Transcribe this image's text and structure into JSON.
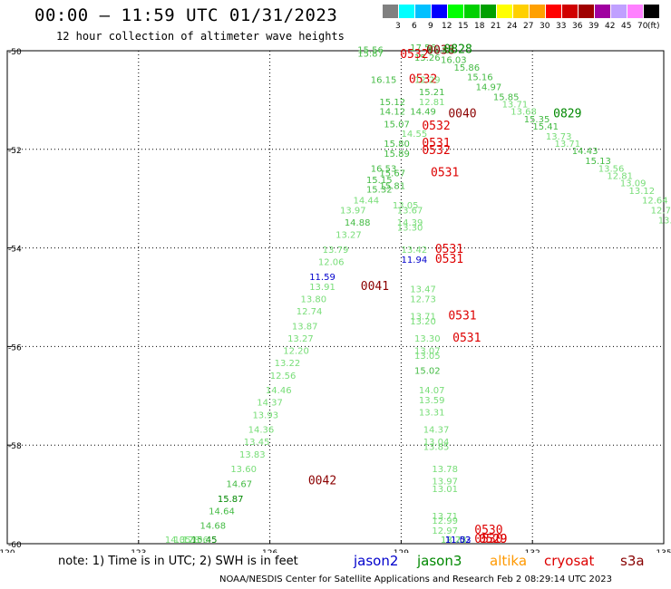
{
  "title": "00:00 – 11:59 UTC 01/31/2023",
  "subtitle": "12 hour collection of altimeter wave heights",
  "legend": {
    "unit": "(ft)",
    "colors": [
      "#808080",
      "#00ffff",
      "#00c0ff",
      "#0000ff",
      "#00ff00",
      "#00d000",
      "#00a000",
      "#ffff00",
      "#ffd000",
      "#ffa000",
      "#ff0000",
      "#d00000",
      "#a00000",
      "#a000a0",
      "#c0a0ff",
      "#ff80ff",
      "#000000"
    ],
    "labels": [
      "3",
      "6",
      "9",
      "12",
      "15",
      "18",
      "21",
      "24",
      "27",
      "30",
      "33",
      "36",
      "39",
      "42",
      "45",
      "70"
    ]
  },
  "note": "note: 1) Time is in UTC; 2) SWH is in feet",
  "satellites": [
    {
      "name": "jason2",
      "color": "#0000cc"
    },
    {
      "name": "jason3",
      "color": "#008800"
    },
    {
      "name": "altika",
      "color": "#ff9900"
    },
    {
      "name": "cryosat",
      "color": "#dd0000"
    },
    {
      "name": "s3a",
      "color": "#880000"
    }
  ],
  "footer": "NOAA/NESDIS Center for Satellite Applications and Research   Feb  2 08:29:14 UTC 2023",
  "chart_data": {
    "type": "scatter",
    "xlim": [
      120,
      135
    ],
    "ylim": [
      -60,
      -50
    ],
    "x_ticks": [
      "120",
      "123",
      "126",
      "129",
      "132",
      "135"
    ],
    "y_ticks": [
      "-50",
      "-52",
      "-54",
      "-56",
      "-58",
      "-60"
    ],
    "grid": true,
    "text_points": [
      {
        "x": 128.3,
        "y": -50.05,
        "text": "15.56",
        "color": "#44bb44"
      },
      {
        "x": 128.3,
        "y": -50.12,
        "text": "15.87",
        "color": "#44bb44"
      },
      {
        "x": 129.5,
        "y": -50.0,
        "text": "17.56",
        "color": "#44bb44"
      },
      {
        "x": 129.9,
        "y": -50.05,
        "text": "15.89",
        "color": "#44bb44"
      },
      {
        "x": 129.6,
        "y": -50.2,
        "text": "15.26",
        "color": "#44bb44"
      },
      {
        "x": 129.9,
        "y": -50.06,
        "text": "0038",
        "color": "#8b0000"
      },
      {
        "x": 130.3,
        "y": -50.05,
        "text": "0828",
        "color": "#008800"
      },
      {
        "x": 130.2,
        "y": -50.25,
        "text": "16.03",
        "color": "#44bb44"
      },
      {
        "x": 130.5,
        "y": -50.4,
        "text": "15.86",
        "color": "#44bb44"
      },
      {
        "x": 130.8,
        "y": -50.6,
        "text": "15.16",
        "color": "#44bb44"
      },
      {
        "x": 131.0,
        "y": -50.8,
        "text": "14.97",
        "color": "#44bb44"
      },
      {
        "x": 131.4,
        "y": -51.0,
        "text": "15.85",
        "color": "#44bb44"
      },
      {
        "x": 131.6,
        "y": -51.15,
        "text": "13.71",
        "color": "#77dd77"
      },
      {
        "x": 131.8,
        "y": -51.3,
        "text": "13.68",
        "color": "#77dd77"
      },
      {
        "x": 132.1,
        "y": -51.45,
        "text": "15.35",
        "color": "#44bb44"
      },
      {
        "x": 132.3,
        "y": -51.6,
        "text": "15.41",
        "color": "#44bb44"
      },
      {
        "x": 132.8,
        "y": -51.35,
        "text": "0829",
        "color": "#008800"
      },
      {
        "x": 132.6,
        "y": -51.8,
        "text": "13.73",
        "color": "#77dd77"
      },
      {
        "x": 132.8,
        "y": -51.95,
        "text": "13.71",
        "color": "#77dd77"
      },
      {
        "x": 133.2,
        "y": -52.1,
        "text": "14.43",
        "color": "#44bb44"
      },
      {
        "x": 133.5,
        "y": -52.3,
        "text": "15.13",
        "color": "#44bb44"
      },
      {
        "x": 133.8,
        "y": -52.45,
        "text": "13.56",
        "color": "#77dd77"
      },
      {
        "x": 134.0,
        "y": -52.6,
        "text": "12.81",
        "color": "#77dd77"
      },
      {
        "x": 134.3,
        "y": -52.75,
        "text": "13.09",
        "color": "#77dd77"
      },
      {
        "x": 134.5,
        "y": -52.9,
        "text": "13.12",
        "color": "#77dd77"
      },
      {
        "x": 134.8,
        "y": -53.1,
        "text": "12.64",
        "color": "#77dd77"
      },
      {
        "x": 135.0,
        "y": -53.3,
        "text": "12.75",
        "color": "#77dd77"
      },
      {
        "x": 135.1,
        "y": -53.5,
        "text": "13.2",
        "color": "#77dd77"
      },
      {
        "x": 129.3,
        "y": -50.15,
        "text": "0532",
        "color": "#dd0000"
      },
      {
        "x": 129.5,
        "y": -50.65,
        "text": "0532",
        "color": "#dd0000"
      },
      {
        "x": 128.6,
        "y": -50.65,
        "text": "16.15",
        "color": "#44bb44"
      },
      {
        "x": 129.6,
        "y": -50.65,
        "text": "12.29",
        "color": "#77dd77"
      },
      {
        "x": 129.7,
        "y": -50.9,
        "text": "15.21",
        "color": "#44bb44"
      },
      {
        "x": 128.8,
        "y": -51.1,
        "text": "15.12",
        "color": "#44bb44"
      },
      {
        "x": 129.7,
        "y": -51.1,
        "text": "12.81",
        "color": "#77dd77"
      },
      {
        "x": 128.8,
        "y": -51.3,
        "text": "14.12",
        "color": "#44bb44"
      },
      {
        "x": 129.5,
        "y": -51.3,
        "text": "14.49",
        "color": "#44bb44"
      },
      {
        "x": 130.4,
        "y": -51.35,
        "text": "0040",
        "color": "#8b0000"
      },
      {
        "x": 128.9,
        "y": -51.55,
        "text": "15.07",
        "color": "#44bb44"
      },
      {
        "x": 129.8,
        "y": -51.6,
        "text": "0532",
        "color": "#dd0000"
      },
      {
        "x": 129.3,
        "y": -51.75,
        "text": "14.55",
        "color": "#77dd77"
      },
      {
        "x": 128.9,
        "y": -51.95,
        "text": "15.80",
        "color": "#44bb44"
      },
      {
        "x": 129.8,
        "y": -51.95,
        "text": "0531",
        "color": "#dd0000"
      },
      {
        "x": 129.8,
        "y": -52.1,
        "text": "0532",
        "color": "#dd0000"
      },
      {
        "x": 128.9,
        "y": -52.15,
        "text": "15.89",
        "color": "#44bb44"
      },
      {
        "x": 128.6,
        "y": -52.45,
        "text": "16.53",
        "color": "#44bb44"
      },
      {
        "x": 128.8,
        "y": -52.55,
        "text": "15.67",
        "color": "#44bb44"
      },
      {
        "x": 130.0,
        "y": -52.55,
        "text": "0531",
        "color": "#dd0000"
      },
      {
        "x": 128.5,
        "y": -52.68,
        "text": "15.15",
        "color": "#44bb44"
      },
      {
        "x": 128.8,
        "y": -52.8,
        "text": "15.81",
        "color": "#44bb44"
      },
      {
        "x": 128.5,
        "y": -52.88,
        "text": "15.32",
        "color": "#44bb44"
      },
      {
        "x": 128.2,
        "y": -53.1,
        "text": "14.44",
        "color": "#77dd77"
      },
      {
        "x": 129.1,
        "y": -53.2,
        "text": "13.05",
        "color": "#77dd77"
      },
      {
        "x": 127.9,
        "y": -53.3,
        "text": "13.97",
        "color": "#77dd77"
      },
      {
        "x": 129.2,
        "y": -53.3,
        "text": "13.67",
        "color": "#77dd77"
      },
      {
        "x": 128.0,
        "y": -53.55,
        "text": "14.88",
        "color": "#44bb44"
      },
      {
        "x": 129.2,
        "y": -53.55,
        "text": "14.39",
        "color": "#77dd77"
      },
      {
        "x": 129.2,
        "y": -53.65,
        "text": "13.30",
        "color": "#77dd77"
      },
      {
        "x": 127.8,
        "y": -53.8,
        "text": "13.27",
        "color": "#77dd77"
      },
      {
        "x": 127.5,
        "y": -54.1,
        "text": "13.79",
        "color": "#77dd77"
      },
      {
        "x": 129.3,
        "y": -54.1,
        "text": "13.42",
        "color": "#77dd77"
      },
      {
        "x": 130.1,
        "y": -54.1,
        "text": "0531",
        "color": "#dd0000"
      },
      {
        "x": 129.3,
        "y": -54.3,
        "text": "11.94",
        "color": "#0000cc"
      },
      {
        "x": 130.1,
        "y": -54.3,
        "text": "0531",
        "color": "#dd0000"
      },
      {
        "x": 127.4,
        "y": -54.35,
        "text": "12.06",
        "color": "#77dd77"
      },
      {
        "x": 127.2,
        "y": -54.65,
        "text": "11.59",
        "color": "#0000cc"
      },
      {
        "x": 127.2,
        "y": -54.85,
        "text": "13.91",
        "color": "#77dd77"
      },
      {
        "x": 128.4,
        "y": -54.85,
        "text": "0041",
        "color": "#8b0000"
      },
      {
        "x": 129.5,
        "y": -54.9,
        "text": "13.47",
        "color": "#77dd77"
      },
      {
        "x": 127.0,
        "y": -55.1,
        "text": "13.80",
        "color": "#77dd77"
      },
      {
        "x": 129.5,
        "y": -55.1,
        "text": "12.73",
        "color": "#77dd77"
      },
      {
        "x": 126.9,
        "y": -55.35,
        "text": "12.74",
        "color": "#77dd77"
      },
      {
        "x": 129.5,
        "y": -55.45,
        "text": "13.71",
        "color": "#77dd77"
      },
      {
        "x": 130.4,
        "y": -55.45,
        "text": "0531",
        "color": "#dd0000"
      },
      {
        "x": 126.8,
        "y": -55.65,
        "text": "13.87",
        "color": "#77dd77"
      },
      {
        "x": 129.5,
        "y": -55.55,
        "text": "13.20",
        "color": "#77dd77"
      },
      {
        "x": 126.7,
        "y": -55.9,
        "text": "13.27",
        "color": "#77dd77"
      },
      {
        "x": 129.6,
        "y": -55.9,
        "text": "13.30",
        "color": "#77dd77"
      },
      {
        "x": 130.5,
        "y": -55.9,
        "text": "0531",
        "color": "#dd0000"
      },
      {
        "x": 126.6,
        "y": -56.15,
        "text": "12.20",
        "color": "#77dd77"
      },
      {
        "x": 129.6,
        "y": -56.15,
        "text": "13.07",
        "color": "#77dd77"
      },
      {
        "x": 129.6,
        "y": -56.25,
        "text": "13.05",
        "color": "#77dd77"
      },
      {
        "x": 126.4,
        "y": -56.4,
        "text": "13.22",
        "color": "#77dd77"
      },
      {
        "x": 129.6,
        "y": -56.55,
        "text": "15.02",
        "color": "#44bb44"
      },
      {
        "x": 126.3,
        "y": -56.65,
        "text": "12.56",
        "color": "#77dd77"
      },
      {
        "x": 126.2,
        "y": -56.95,
        "text": "14.46",
        "color": "#77dd77"
      },
      {
        "x": 129.7,
        "y": -56.95,
        "text": "14.07",
        "color": "#77dd77"
      },
      {
        "x": 126.0,
        "y": -57.2,
        "text": "14.37",
        "color": "#77dd77"
      },
      {
        "x": 129.7,
        "y": -57.15,
        "text": "13.59",
        "color": "#77dd77"
      },
      {
        "x": 129.7,
        "y": -57.4,
        "text": "13.31",
        "color": "#77dd77"
      },
      {
        "x": 125.9,
        "y": -57.45,
        "text": "13.93",
        "color": "#77dd77"
      },
      {
        "x": 129.8,
        "y": -57.75,
        "text": "14.37",
        "color": "#77dd77"
      },
      {
        "x": 125.8,
        "y": -57.75,
        "text": "14.36",
        "color": "#77dd77"
      },
      {
        "x": 125.7,
        "y": -58.0,
        "text": "13.45",
        "color": "#77dd77"
      },
      {
        "x": 129.8,
        "y": -58.0,
        "text": "13.04",
        "color": "#77dd77"
      },
      {
        "x": 129.8,
        "y": -58.1,
        "text": "13.85",
        "color": "#77dd77"
      },
      {
        "x": 125.6,
        "y": -58.25,
        "text": "13.83",
        "color": "#77dd77"
      },
      {
        "x": 125.4,
        "y": -58.55,
        "text": "13.60",
        "color": "#77dd77"
      },
      {
        "x": 130.0,
        "y": -58.55,
        "text": "13.78",
        "color": "#77dd77"
      },
      {
        "x": 125.3,
        "y": -58.85,
        "text": "14.67",
        "color": "#44bb44"
      },
      {
        "x": 127.2,
        "y": -58.8,
        "text": "0042",
        "color": "#8b0000"
      },
      {
        "x": 130.0,
        "y": -58.8,
        "text": "13.97",
        "color": "#77dd77"
      },
      {
        "x": 130.0,
        "y": -58.95,
        "text": "13.01",
        "color": "#77dd77"
      },
      {
        "x": 125.1,
        "y": -59.15,
        "text": "15.87",
        "color": "#008800"
      },
      {
        "x": 124.9,
        "y": -59.4,
        "text": "14.64",
        "color": "#44bb44"
      },
      {
        "x": 130.0,
        "y": -59.5,
        "text": "13.71",
        "color": "#77dd77"
      },
      {
        "x": 130.0,
        "y": -59.6,
        "text": "12.99",
        "color": "#77dd77"
      },
      {
        "x": 124.7,
        "y": -59.7,
        "text": "14.68",
        "color": "#44bb44"
      },
      {
        "x": 130.0,
        "y": -59.8,
        "text": "12.97",
        "color": "#77dd77"
      },
      {
        "x": 131.0,
        "y": -59.8,
        "text": "0530",
        "color": "#dd0000"
      },
      {
        "x": 124.5,
        "y": -60.05,
        "text": "15.45",
        "color": "#008800"
      },
      {
        "x": 124.3,
        "y": -60.35,
        "text": "12.06",
        "color": "#77dd77"
      },
      {
        "x": 130.2,
        "y": -60.3,
        "text": "13.22",
        "color": "#77dd77"
      },
      {
        "x": 131.0,
        "y": -60.3,
        "text": "0530",
        "color": "#dd0000"
      },
      {
        "x": 124.1,
        "y": -60.6,
        "text": "13.78",
        "color": "#77dd77"
      },
      {
        "x": 130.2,
        "y": -60.55,
        "text": "12.73",
        "color": "#77dd77"
      },
      {
        "x": 123.9,
        "y": -60.9,
        "text": "14.05",
        "color": "#77dd77"
      },
      {
        "x": 130.3,
        "y": -60.85,
        "text": "11.52",
        "color": "#0000cc"
      },
      {
        "x": 131.1,
        "y": -60.85,
        "text": "0529",
        "color": "#dd0000"
      },
      {
        "x": 130.3,
        "y": -61.0,
        "text": "11.03",
        "color": "#0000cc"
      },
      {
        "x": 131.1,
        "y": -61.0,
        "text": "0529",
        "color": "#dd0000"
      }
    ]
  }
}
